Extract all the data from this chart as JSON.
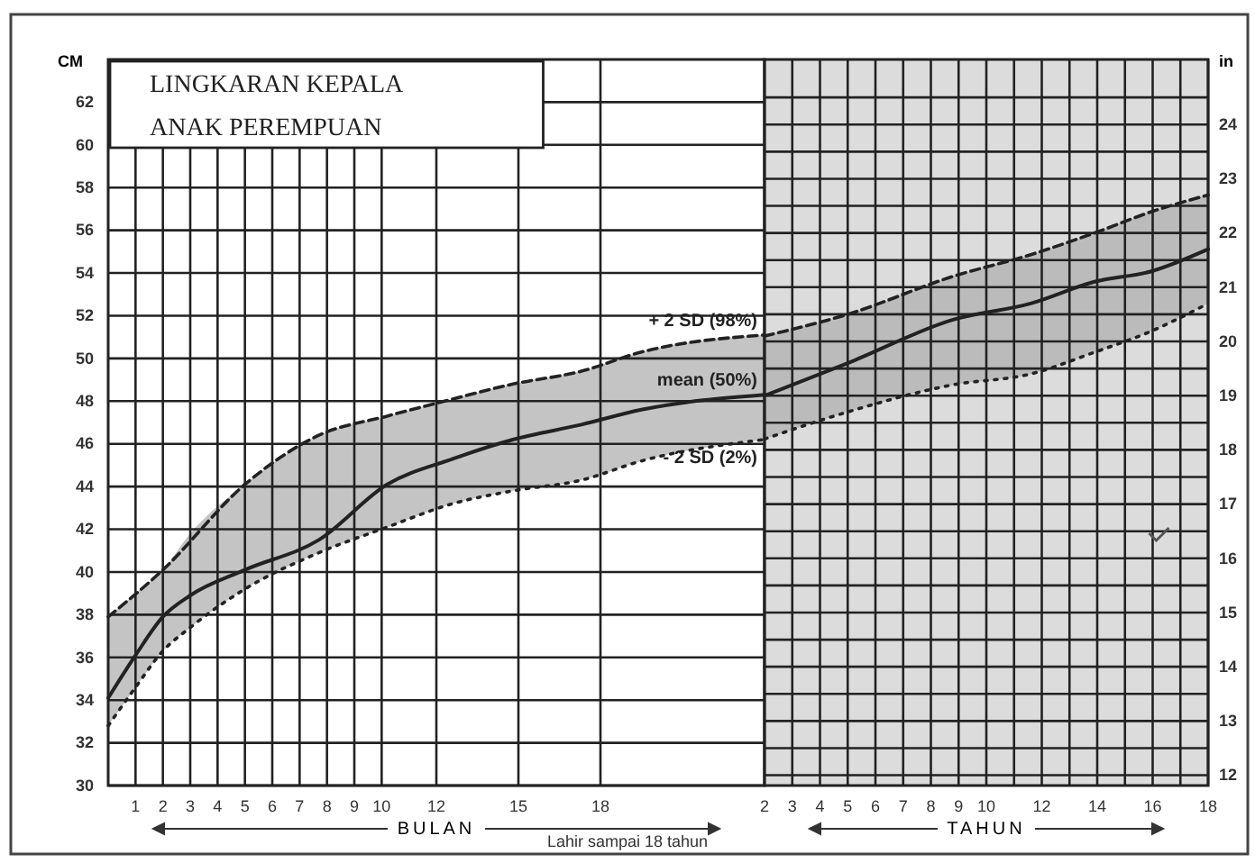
{
  "chart_data": [
    {
      "type": "line",
      "title": "LINGKARAN KEPALA",
      "subtitle": "ANAK PEREMPUAN",
      "xlabel": "BULAN",
      "ylabel": "CM",
      "grid": true,
      "xlim": [
        0,
        24
      ],
      "xticks": [
        1,
        2,
        3,
        4,
        5,
        6,
        7,
        8,
        9,
        10,
        12,
        15,
        18
      ],
      "ylim": [
        30,
        64
      ],
      "yticks": [
        30,
        32,
        34,
        36,
        38,
        40,
        42,
        44,
        46,
        48,
        50,
        52,
        54,
        56,
        58,
        60,
        62
      ],
      "annotations": [
        "Lahir sampai 18 tahun"
      ],
      "series": [
        {
          "name": "+ 2 SD (98%)",
          "color": "#222222",
          "line_style": "dashed",
          "x": [
            0,
            2,
            5,
            7.7,
            10.2,
            12.6,
            14.8,
            17.3,
            19.5,
            24
          ],
          "values": [
            37.9,
            40.1,
            44.1,
            46.4,
            47.3,
            48.1,
            48.8,
            49.4,
            50.3,
            51.1
          ]
        },
        {
          "name": "mean (50%)",
          "color": "#222222",
          "line_style": "solid",
          "x": [
            0,
            1,
            2,
            3,
            5,
            7.7,
            10.2,
            12.6,
            14.8,
            17.3,
            19.5,
            24
          ],
          "values": [
            34.1,
            36.1,
            37.9,
            38.9,
            40.1,
            41.5,
            44.1,
            45.3,
            46.2,
            46.9,
            47.6,
            48.3
          ],
          "lower": [
            32.8,
            34.6,
            36.3,
            37.4,
            39.2,
            40.9,
            42.1,
            43.2,
            43.8,
            44.3,
            45.2,
            46.2
          ],
          "upper": [
            37.9,
            39.0,
            40.1,
            41.8,
            44.1,
            46.4,
            47.3,
            48.1,
            48.8,
            49.4,
            50.3,
            51.1
          ]
        },
        {
          "name": "- 2 SD (2%)",
          "color": "#222222",
          "line_style": "dotted",
          "x": [
            0,
            1,
            2,
            3,
            5,
            7.7,
            10.2,
            12.6,
            14.8,
            17.3,
            19.5,
            24
          ],
          "values": [
            32.8,
            34.6,
            36.3,
            37.4,
            39.2,
            40.9,
            42.1,
            43.2,
            43.8,
            44.3,
            45.2,
            46.2
          ]
        }
      ]
    },
    {
      "type": "line",
      "xlabel": "TAHUN",
      "y2label": "in",
      "grid": true,
      "xlim": [
        2,
        18
      ],
      "xticks": [
        2,
        3,
        4,
        5,
        6,
        7,
        8,
        9,
        10,
        {
          "value": 11,
          "label": null
        },
        12,
        {
          "value": 13,
          "label": null
        },
        14,
        {
          "value": 15,
          "label": null
        },
        16,
        {
          "value": 17,
          "label": null
        },
        18
      ],
      "y2lim": [
        11.81,
        25.2
      ],
      "y2ticks": [
        12,
        {
          "value": 12.5,
          "label": null
        },
        13,
        {
          "value": 13.5,
          "label": null
        },
        14,
        {
          "value": 14.5,
          "label": null
        },
        15,
        {
          "value": 15.5,
          "label": null
        },
        16,
        {
          "value": 16.5,
          "label": null
        },
        17,
        {
          "value": 17.5,
          "label": null
        },
        18,
        {
          "value": 18.5,
          "label": null
        },
        19,
        {
          "value": 19.5,
          "label": null
        },
        20,
        {
          "value": 20.5,
          "label": null
        },
        21,
        {
          "value": 21.5,
          "label": null
        },
        22,
        {
          "value": 22.5,
          "label": null
        },
        23,
        {
          "value": 23.5,
          "label": null
        },
        24,
        {
          "value": 24.5,
          "label": null
        }
      ],
      "series": [
        {
          "axis": "y2",
          "color": "#222222",
          "line_style": "dashed",
          "x": [
            2,
            5,
            8.8,
            11.6,
            13.9,
            16,
            18
          ],
          "values": [
            20.1,
            20.5,
            21.2,
            21.6,
            22.0,
            22.4,
            22.7
          ]
        },
        {
          "axis": "y2",
          "color": "#222222",
          "line_style": "solid",
          "x": [
            2,
            5,
            8.8,
            11.6,
            13.9,
            16,
            18
          ],
          "values": [
            19.0,
            19.6,
            20.4,
            20.7,
            21.1,
            21.3,
            21.7
          ],
          "lower": [
            18.2,
            18.7,
            19.2,
            19.4,
            19.8,
            20.2,
            20.7
          ],
          "upper": [
            20.1,
            20.5,
            21.2,
            21.6,
            22.0,
            22.4,
            22.7
          ]
        },
        {
          "axis": "y2",
          "color": "#222222",
          "line_style": "dotted",
          "x": [
            2,
            5,
            8.8,
            11.6,
            13.9,
            16,
            18
          ],
          "values": [
            18.2,
            18.7,
            19.2,
            19.4,
            19.8,
            20.2,
            20.7
          ]
        }
      ]
    }
  ]
}
